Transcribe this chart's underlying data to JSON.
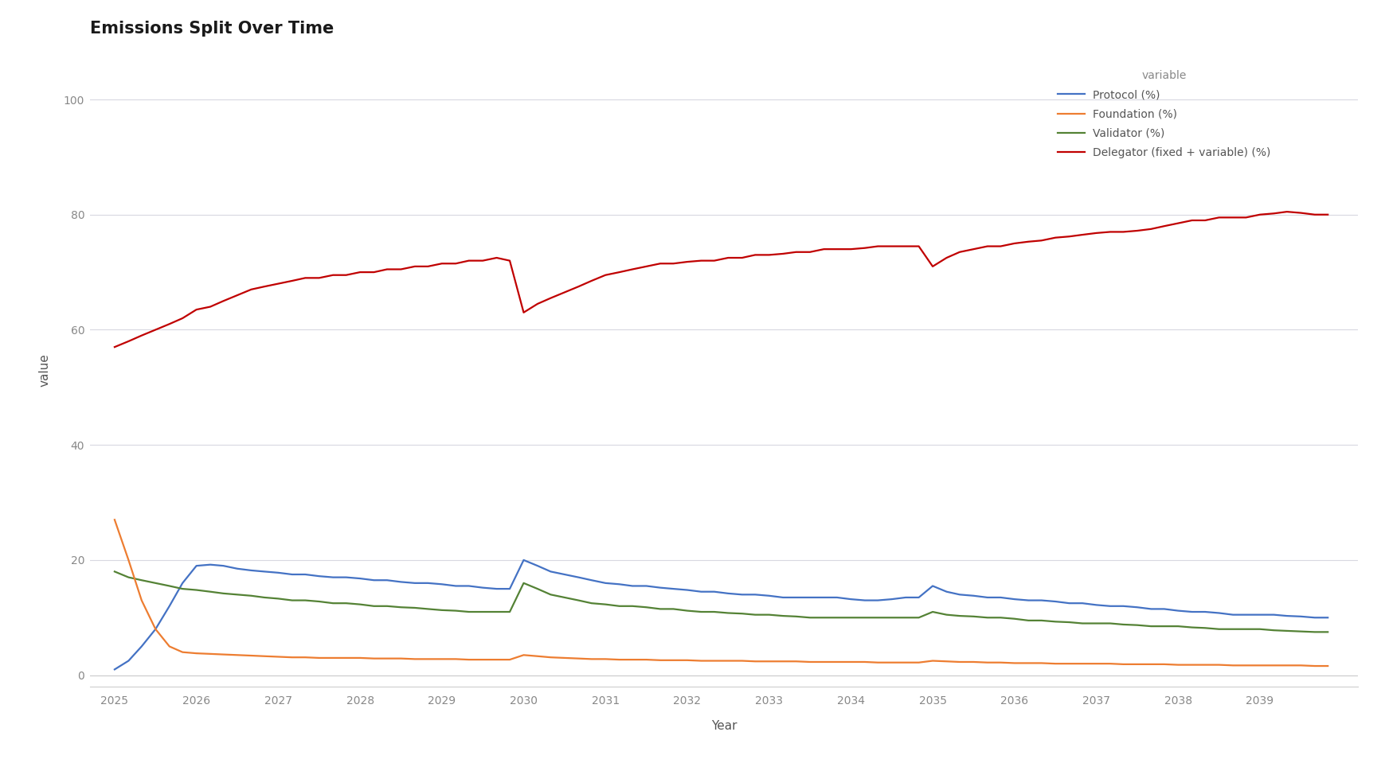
{
  "title": "Emissions Split Over Time",
  "xlabel": "Year",
  "ylabel": "value",
  "legend_title": "variable",
  "background_color": "#ffffff",
  "grid_color": "#d8d8e0",
  "years": [
    2025.0,
    2025.17,
    2025.33,
    2025.5,
    2025.67,
    2025.83,
    2026.0,
    2026.17,
    2026.33,
    2026.5,
    2026.67,
    2026.83,
    2027.0,
    2027.17,
    2027.33,
    2027.5,
    2027.67,
    2027.83,
    2028.0,
    2028.17,
    2028.33,
    2028.5,
    2028.67,
    2028.83,
    2029.0,
    2029.17,
    2029.33,
    2029.5,
    2029.67,
    2029.83,
    2030.0,
    2030.17,
    2030.33,
    2030.5,
    2030.67,
    2030.83,
    2031.0,
    2031.17,
    2031.33,
    2031.5,
    2031.67,
    2031.83,
    2032.0,
    2032.17,
    2032.33,
    2032.5,
    2032.67,
    2032.83,
    2033.0,
    2033.17,
    2033.33,
    2033.5,
    2033.67,
    2033.83,
    2034.0,
    2034.17,
    2034.33,
    2034.5,
    2034.67,
    2034.83,
    2035.0,
    2035.17,
    2035.33,
    2035.5,
    2035.67,
    2035.83,
    2036.0,
    2036.17,
    2036.33,
    2036.5,
    2036.67,
    2036.83,
    2037.0,
    2037.17,
    2037.33,
    2037.5,
    2037.67,
    2037.83,
    2038.0,
    2038.17,
    2038.33,
    2038.5,
    2038.67,
    2038.83,
    2039.0,
    2039.17,
    2039.33,
    2039.5,
    2039.67,
    2039.83
  ],
  "protocol": [
    1.0,
    2.5,
    5.0,
    8.0,
    12.0,
    16.0,
    19.0,
    19.2,
    19.0,
    18.5,
    18.2,
    18.0,
    17.8,
    17.5,
    17.5,
    17.2,
    17.0,
    17.0,
    16.8,
    16.5,
    16.5,
    16.2,
    16.0,
    16.0,
    15.8,
    15.5,
    15.5,
    15.2,
    15.0,
    15.0,
    20.0,
    19.0,
    18.0,
    17.5,
    17.0,
    16.5,
    16.0,
    15.8,
    15.5,
    15.5,
    15.2,
    15.0,
    14.8,
    14.5,
    14.5,
    14.2,
    14.0,
    14.0,
    13.8,
    13.5,
    13.5,
    13.5,
    13.5,
    13.5,
    13.2,
    13.0,
    13.0,
    13.2,
    13.5,
    13.5,
    15.5,
    14.5,
    14.0,
    13.8,
    13.5,
    13.5,
    13.2,
    13.0,
    13.0,
    12.8,
    12.5,
    12.5,
    12.2,
    12.0,
    12.0,
    11.8,
    11.5,
    11.5,
    11.2,
    11.0,
    11.0,
    10.8,
    10.5,
    10.5,
    10.5,
    10.5,
    10.3,
    10.2,
    10.0,
    10.0
  ],
  "foundation": [
    27.0,
    20.0,
    13.0,
    8.0,
    5.0,
    4.0,
    3.8,
    3.7,
    3.6,
    3.5,
    3.4,
    3.3,
    3.2,
    3.1,
    3.1,
    3.0,
    3.0,
    3.0,
    3.0,
    2.9,
    2.9,
    2.9,
    2.8,
    2.8,
    2.8,
    2.8,
    2.7,
    2.7,
    2.7,
    2.7,
    3.5,
    3.3,
    3.1,
    3.0,
    2.9,
    2.8,
    2.8,
    2.7,
    2.7,
    2.7,
    2.6,
    2.6,
    2.6,
    2.5,
    2.5,
    2.5,
    2.5,
    2.4,
    2.4,
    2.4,
    2.4,
    2.3,
    2.3,
    2.3,
    2.3,
    2.3,
    2.2,
    2.2,
    2.2,
    2.2,
    2.5,
    2.4,
    2.3,
    2.3,
    2.2,
    2.2,
    2.1,
    2.1,
    2.1,
    2.0,
    2.0,
    2.0,
    2.0,
    2.0,
    1.9,
    1.9,
    1.9,
    1.9,
    1.8,
    1.8,
    1.8,
    1.8,
    1.7,
    1.7,
    1.7,
    1.7,
    1.7,
    1.7,
    1.6,
    1.6
  ],
  "validator": [
    18.0,
    17.0,
    16.5,
    16.0,
    15.5,
    15.0,
    14.8,
    14.5,
    14.2,
    14.0,
    13.8,
    13.5,
    13.3,
    13.0,
    13.0,
    12.8,
    12.5,
    12.5,
    12.3,
    12.0,
    12.0,
    11.8,
    11.7,
    11.5,
    11.3,
    11.2,
    11.0,
    11.0,
    11.0,
    11.0,
    16.0,
    15.0,
    14.0,
    13.5,
    13.0,
    12.5,
    12.3,
    12.0,
    12.0,
    11.8,
    11.5,
    11.5,
    11.2,
    11.0,
    11.0,
    10.8,
    10.7,
    10.5,
    10.5,
    10.3,
    10.2,
    10.0,
    10.0,
    10.0,
    10.0,
    10.0,
    10.0,
    10.0,
    10.0,
    10.0,
    11.0,
    10.5,
    10.3,
    10.2,
    10.0,
    10.0,
    9.8,
    9.5,
    9.5,
    9.3,
    9.2,
    9.0,
    9.0,
    9.0,
    8.8,
    8.7,
    8.5,
    8.5,
    8.5,
    8.3,
    8.2,
    8.0,
    8.0,
    8.0,
    8.0,
    7.8,
    7.7,
    7.6,
    7.5,
    7.5
  ],
  "delegator": [
    57.0,
    58.0,
    59.0,
    60.0,
    61.0,
    62.0,
    63.5,
    64.0,
    65.0,
    66.0,
    67.0,
    67.5,
    68.0,
    68.5,
    69.0,
    69.0,
    69.5,
    69.5,
    70.0,
    70.0,
    70.5,
    70.5,
    71.0,
    71.0,
    71.5,
    71.5,
    72.0,
    72.0,
    72.5,
    72.0,
    63.0,
    64.5,
    65.5,
    66.5,
    67.5,
    68.5,
    69.5,
    70.0,
    70.5,
    71.0,
    71.5,
    71.5,
    71.8,
    72.0,
    72.0,
    72.5,
    72.5,
    73.0,
    73.0,
    73.2,
    73.5,
    73.5,
    74.0,
    74.0,
    74.0,
    74.2,
    74.5,
    74.5,
    74.5,
    74.5,
    71.0,
    72.5,
    73.5,
    74.0,
    74.5,
    74.5,
    75.0,
    75.3,
    75.5,
    76.0,
    76.2,
    76.5,
    76.8,
    77.0,
    77.0,
    77.2,
    77.5,
    78.0,
    78.5,
    79.0,
    79.0,
    79.5,
    79.5,
    79.5,
    80.0,
    80.2,
    80.5,
    80.3,
    80.0,
    80.0
  ],
  "protocol_color": "#4472c4",
  "foundation_color": "#ed7d31",
  "validator_color": "#548235",
  "delegator_color": "#c00000",
  "ylim": [
    -2,
    108
  ],
  "yticks": [
    0,
    20,
    40,
    60,
    80,
    100
  ],
  "xticks": [
    2025,
    2026,
    2027,
    2028,
    2029,
    2030,
    2031,
    2032,
    2033,
    2034,
    2035,
    2036,
    2037,
    2038,
    2039
  ],
  "title_fontsize": 15,
  "label_fontsize": 11,
  "tick_fontsize": 10,
  "legend_fontsize": 10,
  "line_width": 1.6
}
